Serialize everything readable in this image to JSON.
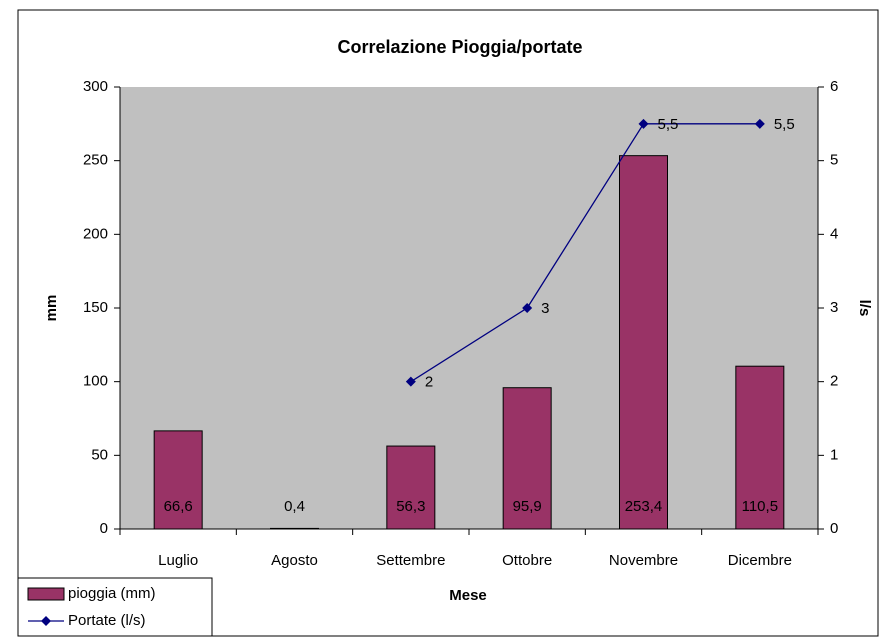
{
  "chart_data": {
    "type": "bar_line",
    "title": "Correlazione Pioggia/portate",
    "x_label": "Mese",
    "y_label": "mm",
    "y2_label": "l/s",
    "categories": [
      "Luglio",
      "Agosto",
      "Settembre",
      "Ottobre",
      "Novembre",
      "Dicembre"
    ],
    "series": [
      {
        "name": "pioggia (mm)",
        "type": "bar",
        "color": "#993366",
        "values": [
          66.6,
          0.4,
          56.3,
          95.9,
          253.4,
          110.5
        ],
        "value_labels": [
          "66,6",
          "0,4",
          "56,3",
          "95,9",
          "253,4",
          "110,5"
        ]
      },
      {
        "name": "Portate (l/s)",
        "type": "line",
        "color": "#000080",
        "axis": "y2",
        "values": [
          null,
          null,
          2,
          3,
          5.5,
          5.5
        ],
        "value_labels": [
          null,
          null,
          "2",
          "3",
          "5,5",
          "5,5"
        ]
      }
    ],
    "ylim": [
      0,
      300
    ],
    "yticks": [
      0,
      50,
      100,
      150,
      200,
      250,
      300
    ],
    "y2lim": [
      0,
      6
    ],
    "y2ticks": [
      0,
      1,
      2,
      3,
      4,
      5,
      6
    ],
    "grid": false,
    "legend": "bottom-left"
  }
}
